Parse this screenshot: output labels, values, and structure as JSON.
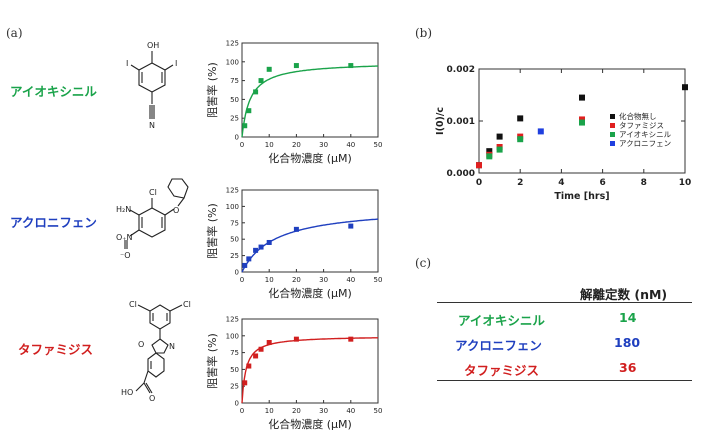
{
  "panels": {
    "a": "(a)",
    "b": "(b)",
    "c": "(c)"
  },
  "compounds": [
    {
      "name": "アイオキシニル",
      "color": "#1aa34a"
    },
    {
      "name": "アクロニフェン",
      "color": "#1f3fbf"
    },
    {
      "name": "タファミジス",
      "color": "#d11f1f"
    }
  ],
  "structures": {
    "ioxynil": {
      "oh": "OH",
      "i_left": "I",
      "i_right": "I",
      "n": "N"
    },
    "aclonifen": {
      "h2n": "H₂N",
      "cl": "Cl",
      "no2": "O₊N",
      "o_minus": "⁻O",
      "o": "O"
    },
    "tafamidis": {
      "cl_left": "Cl",
      "cl_right": "Cl",
      "o": "O",
      "n": "N",
      "ho": "HO",
      "co": "O"
    }
  },
  "chart_data": [
    {
      "type": "scatter",
      "name": "ioxynil_inhibition",
      "color": "#1aa34a",
      "xlabel": "化合物濃度 (μM)",
      "ylabel": "阻害率 (%)",
      "xlim": [
        0,
        50
      ],
      "ylim": [
        0,
        125
      ],
      "xticks": [
        0,
        10,
        20,
        30,
        40,
        50
      ],
      "yticks": [
        0,
        25,
        50,
        75,
        100,
        125
      ],
      "points": {
        "x": [
          1,
          2.5,
          5,
          7,
          10,
          20,
          40
        ],
        "y": [
          15,
          35,
          60,
          75,
          90,
          95,
          95
        ]
      },
      "fit": {
        "model": "hyperbolic",
        "max": 100,
        "kd": 3
      }
    },
    {
      "type": "scatter",
      "name": "aclonifen_inhibition",
      "color": "#1f3fbf",
      "xlabel": "化合物濃度 (μM)",
      "ylabel": "阻害率 (%)",
      "xlim": [
        0,
        50
      ],
      "ylim": [
        0,
        125
      ],
      "xticks": [
        0,
        10,
        20,
        30,
        40,
        50
      ],
      "yticks": [
        0,
        25,
        50,
        75,
        100,
        125
      ],
      "points": {
        "x": [
          1,
          2.5,
          5,
          7,
          10,
          20,
          40
        ],
        "y": [
          10,
          20,
          33,
          38,
          45,
          65,
          70
        ]
      },
      "fit": {
        "model": "hyperbolic",
        "max": 100,
        "kd": 12
      }
    },
    {
      "type": "scatter",
      "name": "tafamidis_inhibition",
      "color": "#d11f1f",
      "xlabel": "化合物濃度 (μM)",
      "ylabel": "阻害率 (%)",
      "xlim": [
        0,
        50
      ],
      "ylim": [
        0,
        125
      ],
      "xticks": [
        0,
        10,
        20,
        30,
        40,
        50
      ],
      "yticks": [
        0,
        25,
        50,
        75,
        100,
        125
      ],
      "points": {
        "x": [
          1,
          2.5,
          5,
          7,
          10,
          20,
          40
        ],
        "y": [
          30,
          55,
          70,
          80,
          90,
          95,
          95
        ]
      },
      "fit": {
        "model": "hyperbolic",
        "max": 100,
        "kd": 1.5
      }
    },
    {
      "type": "scatter",
      "name": "time_course",
      "xlabel": "Time [hrs]",
      "ylabel": "I(0)/c",
      "xlim": [
        0,
        10
      ],
      "ylim": [
        0,
        0.002
      ],
      "xticks": [
        0,
        2,
        4,
        6,
        8,
        10
      ],
      "yticks": [
        0,
        0.001,
        0.002
      ],
      "ytick_labels": [
        "0.000",
        "0.001",
        "0.002"
      ],
      "legend": "right",
      "series": [
        {
          "name": "化合物無し",
          "color": "#111111",
          "x": [
            0,
            0.5,
            1,
            2,
            5,
            10
          ],
          "y": [
            0.00015,
            0.00042,
            0.0007,
            0.00105,
            0.00145,
            0.00165
          ]
        },
        {
          "name": "タファミジス",
          "color": "#e01f1f",
          "x": [
            0,
            0.5,
            1,
            2,
            5
          ],
          "y": [
            0.00015,
            0.00035,
            0.0005,
            0.0007,
            0.00103
          ]
        },
        {
          "name": "アイオキシニル",
          "color": "#1aa34a",
          "x": [
            0.5,
            1,
            2,
            5
          ],
          "y": [
            0.00032,
            0.00045,
            0.00065,
            0.00097
          ]
        },
        {
          "name": "アクロニフェン",
          "color": "#1f3fdf",
          "x": [
            3
          ],
          "y": [
            0.0008
          ]
        }
      ]
    }
  ],
  "table": {
    "header": "解離定数 (nM)",
    "rows": [
      {
        "name": "アイオキシニル",
        "value": "14",
        "color": "#1aa34a"
      },
      {
        "name": "アクロニフェン",
        "value": "180",
        "color": "#1f3fbf"
      },
      {
        "name": "タファミジス",
        "value": "36",
        "color": "#d11f1f"
      }
    ]
  }
}
